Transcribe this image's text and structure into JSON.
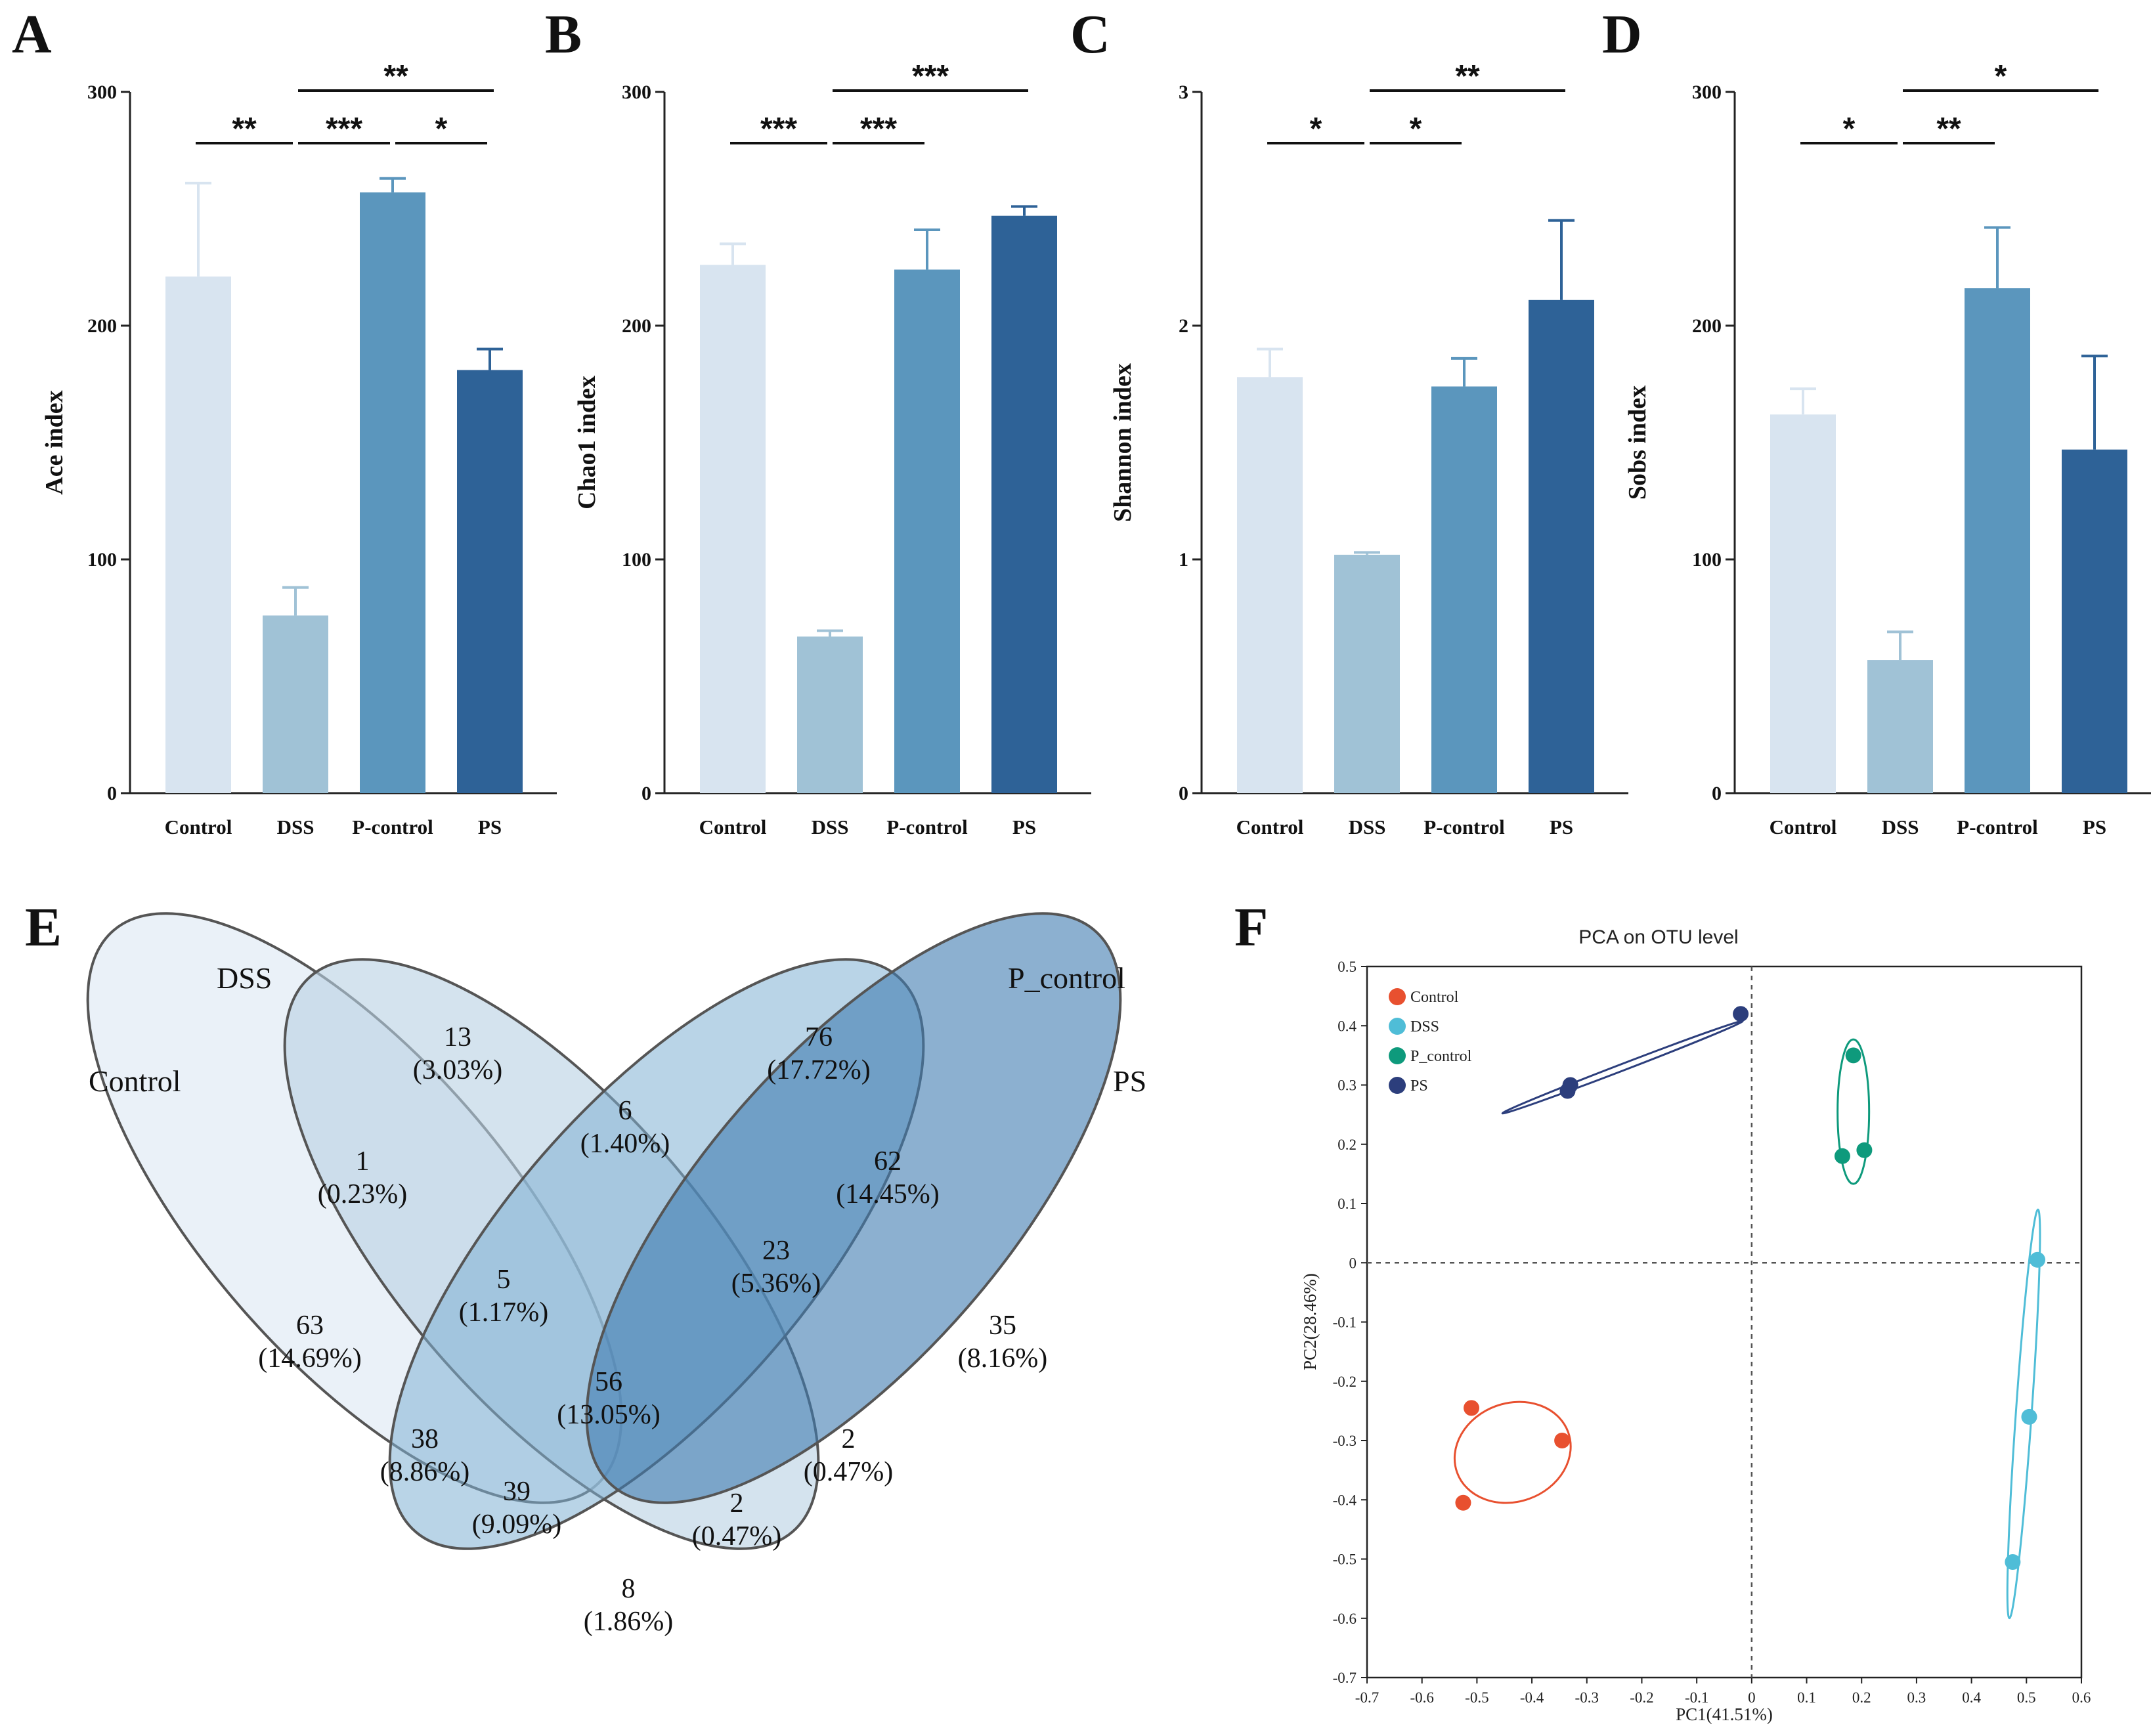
{
  "colors": {
    "Control": "#d8e4f0",
    "DSS": "#a0c2d6",
    "P-control": "#5b96bd",
    "PS": "#2e6297",
    "axis": "#222222",
    "pca_Control": "#e8502f",
    "pca_DSS": "#4fbdd7",
    "pca_P_control": "#0e9a7c",
    "pca_PS": "#2c3e7c"
  },
  "chart_data": [
    {
      "panel": "A",
      "type": "bar",
      "ylabel": "Ace index",
      "ylim": [
        0,
        300
      ],
      "yticks": [
        "0",
        "100",
        "200",
        "300"
      ],
      "categories": [
        "Control",
        "DSS",
        "P-control",
        "PS"
      ],
      "values": [
        221,
        76,
        257,
        181
      ],
      "errors": [
        40,
        12,
        6,
        9
      ],
      "significance": [
        {
          "from": 0,
          "to": 1,
          "label": "**",
          "level": 0
        },
        {
          "from": 1,
          "to": 2,
          "label": "***",
          "level": 0
        },
        {
          "from": 2,
          "to": 3,
          "label": "*",
          "level": 0
        },
        {
          "from": 1,
          "to": 3,
          "label": "**",
          "level": 1
        }
      ]
    },
    {
      "panel": "B",
      "type": "bar",
      "ylabel": "Chao1 index",
      "ylim": [
        0,
        300
      ],
      "yticks": [
        "0",
        "100",
        "200",
        "300"
      ],
      "categories": [
        "Control",
        "DSS",
        "P-control",
        "PS"
      ],
      "values": [
        226,
        67,
        224,
        247
      ],
      "errors": [
        9,
        2.5,
        17,
        4
      ],
      "significance": [
        {
          "from": 0,
          "to": 1,
          "label": "***",
          "level": 0
        },
        {
          "from": 1,
          "to": 2,
          "label": "***",
          "level": 0
        },
        {
          "from": 1,
          "to": 3,
          "label": "***",
          "level": 1
        }
      ]
    },
    {
      "panel": "C",
      "type": "bar",
      "ylabel": "Shannon index",
      "ylim": [
        0,
        3
      ],
      "yticks": [
        "0",
        "1",
        "2",
        "3"
      ],
      "categories": [
        "Control",
        "DSS",
        "P-control",
        "PS"
      ],
      "values": [
        1.78,
        1.02,
        1.74,
        2.11
      ],
      "errors": [
        0.12,
        0.01,
        0.12,
        0.34
      ],
      "significance": [
        {
          "from": 0,
          "to": 1,
          "label": "*",
          "level": 0
        },
        {
          "from": 1,
          "to": 2,
          "label": "*",
          "level": 0
        },
        {
          "from": 1,
          "to": 3,
          "label": "**",
          "level": 1
        }
      ]
    },
    {
      "panel": "D",
      "type": "bar",
      "ylabel": "Sobs index",
      "ylim": [
        0,
        300
      ],
      "yticks": [
        "0",
        "100",
        "200",
        "300"
      ],
      "categories": [
        "Control",
        "DSS",
        "P-control",
        "PS"
      ],
      "values": [
        162,
        57,
        216,
        147
      ],
      "errors": [
        11,
        12,
        26,
        40
      ],
      "significance": [
        {
          "from": 0,
          "to": 1,
          "label": "*",
          "level": 0
        },
        {
          "from": 1,
          "to": 2,
          "label": "**",
          "level": 0
        },
        {
          "from": 1,
          "to": 3,
          "label": "*",
          "level": 1
        }
      ]
    },
    {
      "panel": "E",
      "type": "venn",
      "sets": [
        "Control",
        "DSS",
        "P_control",
        "PS"
      ],
      "regions": [
        {
          "sets": [
            "DSS"
          ],
          "count": "13",
          "percent": "(3.03%)"
        },
        {
          "sets": [
            "P_control"
          ],
          "count": "76",
          "percent": "(17.72%)"
        },
        {
          "sets": [
            "DSS",
            "P_control"
          ],
          "count": "6",
          "percent": "(1.40%)"
        },
        {
          "sets": [
            "Control",
            "DSS"
          ],
          "count": "1",
          "percent": "(0.23%)"
        },
        {
          "sets": [
            "P_control",
            "PS"
          ],
          "count": "62",
          "percent": "(14.45%)"
        },
        {
          "sets": [
            "Control",
            "DSS",
            "P_control"
          ],
          "count": "5",
          "percent": "(1.17%)"
        },
        {
          "sets": [
            "DSS",
            "P_control",
            "PS"
          ],
          "count": "23",
          "percent": "(5.36%)"
        },
        {
          "sets": [
            "Control"
          ],
          "count": "63",
          "percent": "(14.69%)"
        },
        {
          "sets": [
            "PS"
          ],
          "count": "35",
          "percent": "(8.16%)"
        },
        {
          "sets": [
            "Control",
            "DSS",
            "P_control",
            "PS"
          ],
          "count": "56",
          "percent": "(13.05%)"
        },
        {
          "sets": [
            "Control",
            "P_control"
          ],
          "count": "38",
          "percent": "(8.86%)"
        },
        {
          "sets": [
            "DSS",
            "PS"
          ],
          "count": "2",
          "percent": "(0.47%)"
        },
        {
          "sets": [
            "Control",
            "P_control",
            "PS"
          ],
          "count": "39",
          "percent": "(9.09%)"
        },
        {
          "sets": [
            "Control",
            "DSS",
            "PS"
          ],
          "count": "2",
          "percent": "(0.47%)"
        },
        {
          "sets": [
            "Control",
            "PS"
          ],
          "count": "8",
          "percent": "(1.86%)"
        }
      ]
    },
    {
      "panel": "F",
      "type": "scatter",
      "title": "PCA on OTU level",
      "xlabel": "PC1(41.51%)",
      "ylabel": "PC2(28.46%)",
      "xlim": [
        -0.7,
        0.6
      ],
      "ylim": [
        -0.7,
        0.5
      ],
      "xticks": [
        "-0.7",
        "-0.6",
        "-0.5",
        "-0.4",
        "-0.3",
        "-0.2",
        "-0.1",
        "0",
        "0.1",
        "0.2",
        "0.3",
        "0.4",
        "0.5",
        "0.6"
      ],
      "yticks": [
        "0.5",
        "0.4",
        "0.3",
        "0.2",
        "0.1",
        "0",
        "-0.1",
        "-0.2",
        "-0.3",
        "-0.4",
        "-0.5",
        "-0.6",
        "-0.7"
      ],
      "series": [
        {
          "name": "Control",
          "points": [
            [
              -0.51,
              -0.245
            ],
            [
              -0.345,
              -0.3
            ],
            [
              -0.525,
              -0.405
            ]
          ]
        },
        {
          "name": "DSS",
          "points": [
            [
              0.52,
              0.005
            ],
            [
              0.505,
              -0.26
            ],
            [
              0.475,
              -0.505
            ]
          ]
        },
        {
          "name": "P_control",
          "points": [
            [
              0.185,
              0.35
            ],
            [
              0.165,
              0.18
            ],
            [
              0.205,
              0.19
            ]
          ]
        },
        {
          "name": "PS",
          "points": [
            [
              -0.02,
              0.42
            ],
            [
              -0.33,
              0.3
            ],
            [
              -0.335,
              0.29
            ]
          ]
        }
      ]
    }
  ]
}
